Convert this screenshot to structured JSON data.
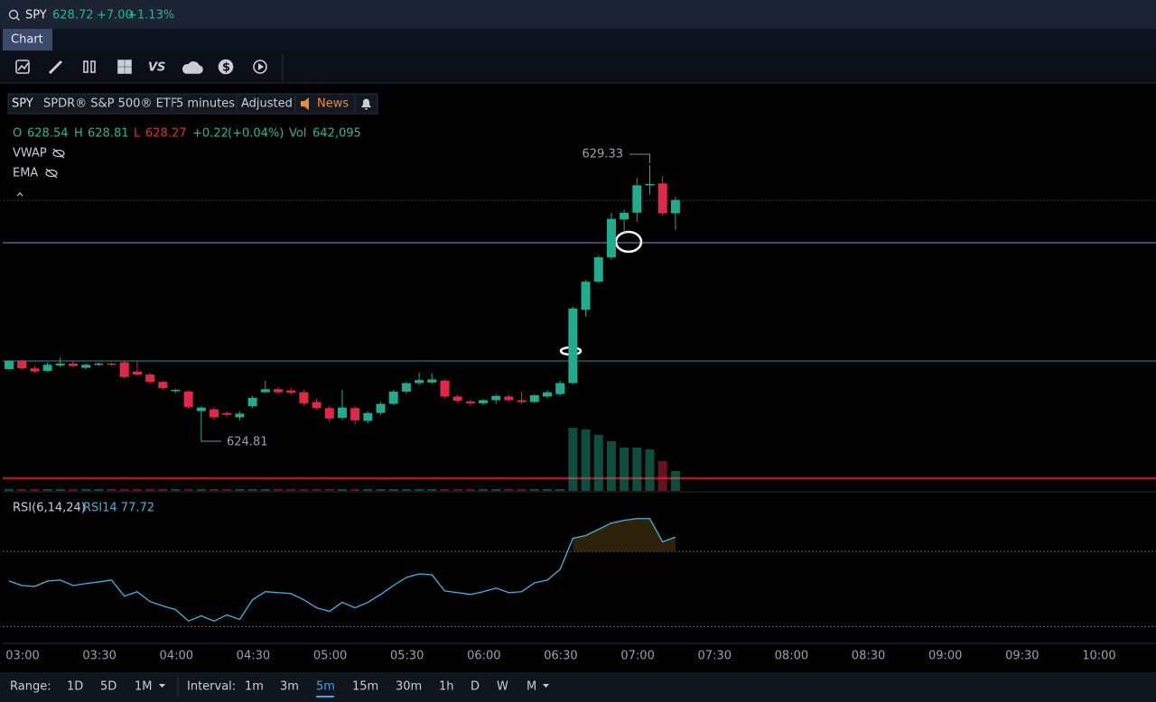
{
  "search": {
    "symbol": "SPY",
    "price": "628.72",
    "change": "+7.00",
    "change_pct": "+1.13%"
  },
  "tabs": [
    "Chart"
  ],
  "header": {
    "symbol": "SPY",
    "name": "SPDR® S&P 500® ETF",
    "interval": "5 minutes",
    "adjustment": "Adjusted",
    "news": "News"
  },
  "ohlc": {
    "o_label": "O",
    "open": "628.54",
    "h_label": "H",
    "high": "628.81",
    "l_label": "L",
    "low": "628.27",
    "change": "+0.22",
    "change_pct": "(+0.04%)",
    "vol_label": "Vol",
    "volume": "642,095"
  },
  "studies": [
    "VWAP",
    "EMA"
  ],
  "chart_data": {
    "type": "candlestick",
    "x": [
      "02:55",
      "03:00",
      "03:05",
      "03:10",
      "03:15",
      "03:20",
      "03:25",
      "03:30",
      "03:35",
      "03:40",
      "03:45",
      "03:50",
      "03:55",
      "04:00",
      "04:05",
      "04:10",
      "04:15",
      "04:20",
      "04:25",
      "04:30",
      "04:35",
      "04:40",
      "04:45",
      "04:50",
      "04:55",
      "05:00",
      "05:05",
      "05:10",
      "05:15",
      "05:20",
      "05:25",
      "05:30",
      "05:35",
      "05:40",
      "05:45",
      "05:50",
      "05:55",
      "06:00",
      "06:05",
      "06:10",
      "06:15",
      "06:20",
      "06:25",
      "06:30",
      "06:35",
      "06:40",
      "06:45",
      "06:50",
      "06:55",
      "07:00",
      "07:05",
      "07:10",
      "07:15"
    ],
    "open": [
      625.99,
      626.12,
      626.0,
      625.96,
      626.05,
      626.08,
      626.01,
      626.06,
      626.08,
      626.1,
      625.95,
      625.9,
      625.78,
      625.63,
      625.62,
      625.3,
      625.33,
      625.27,
      625.2,
      625.38,
      625.61,
      625.66,
      625.64,
      625.61,
      625.45,
      625.35,
      625.19,
      625.35,
      625.14,
      625.27,
      625.42,
      625.62,
      625.76,
      625.77,
      625.8,
      625.54,
      625.46,
      625.43,
      625.48,
      625.54,
      625.48,
      625.45,
      625.54,
      625.58,
      625.76,
      626.96,
      627.42,
      627.82,
      628.44,
      628.55,
      629.0,
      629.03,
      628.54
    ],
    "high": [
      626.14,
      626.14,
      626.04,
      626.1,
      626.18,
      626.12,
      626.08,
      626.1,
      626.1,
      626.12,
      626.12,
      625.93,
      625.8,
      625.66,
      625.64,
      625.38,
      625.36,
      625.3,
      625.3,
      625.55,
      625.8,
      625.7,
      625.68,
      625.65,
      625.5,
      625.38,
      625.65,
      625.38,
      625.3,
      625.45,
      625.65,
      625.78,
      625.93,
      625.92,
      625.82,
      625.57,
      625.49,
      625.5,
      625.58,
      625.57,
      625.62,
      625.58,
      625.64,
      625.8,
      627.01,
      627.45,
      627.85,
      628.55,
      628.6,
      629.12,
      629.33,
      629.15,
      628.81
    ],
    "low": [
      625.97,
      625.98,
      625.93,
      625.94,
      626.02,
      626.02,
      625.99,
      626.04,
      626.05,
      625.83,
      625.88,
      625.75,
      625.65,
      625.6,
      625.34,
      624.81,
      625.16,
      625.21,
      625.15,
      625.35,
      625.6,
      625.58,
      625.57,
      625.39,
      625.32,
      625.13,
      625.15,
      625.08,
      625.1,
      625.24,
      625.4,
      625.58,
      625.73,
      625.75,
      625.51,
      625.44,
      625.39,
      625.4,
      625.42,
      625.45,
      625.42,
      625.43,
      625.51,
      625.55,
      625.74,
      626.85,
      627.4,
      627.78,
      628.22,
      628.4,
      628.85,
      628.5,
      628.27
    ],
    "close": [
      626.12,
      626.0,
      625.95,
      626.06,
      626.08,
      626.04,
      626.06,
      626.08,
      626.06,
      625.86,
      625.9,
      625.78,
      625.68,
      625.65,
      625.37,
      625.36,
      625.2,
      625.24,
      625.26,
      625.52,
      625.66,
      625.61,
      625.6,
      625.43,
      625.35,
      625.18,
      625.36,
      625.15,
      625.27,
      625.42,
      625.62,
      625.76,
      625.81,
      625.82,
      625.54,
      625.47,
      625.43,
      625.48,
      625.55,
      625.48,
      625.45,
      625.56,
      625.61,
      625.76,
      626.98,
      627.42,
      627.82,
      628.45,
      628.55,
      629.0,
      629.02,
      628.54,
      628.76
    ],
    "volume": [
      2,
      2,
      2,
      2,
      2,
      2,
      2,
      2,
      2,
      2,
      2,
      2,
      2,
      2,
      2,
      2,
      2,
      2,
      2,
      2,
      2,
      2,
      2,
      2,
      2,
      2,
      2,
      2,
      2,
      2,
      2,
      2,
      2,
      2,
      2,
      2,
      2,
      2,
      2,
      2,
      2,
      2,
      2,
      2,
      70,
      68,
      62,
      55,
      48,
      48,
      46,
      33,
      22
    ],
    "ylim": [
      623.98,
      630.63
    ],
    "vlim": [
      0,
      100
    ],
    "up_color": "#22ab8c",
    "down_color": "#e0294a",
    "annotations": [
      "629.33",
      "624.81"
    ],
    "xticks": [
      "03:00",
      "03:30",
      "04:00",
      "04:30",
      "05:00",
      "05:30",
      "06:00",
      "06:30",
      "07:00",
      "07:30",
      "08:00",
      "08:30",
      "09:00",
      "09:30",
      "10:00"
    ],
    "rsi": {
      "title": "RSI(6,14,24)",
      "label": "RSI14 77.72",
      "color": "#3fb4e0",
      "values": [
        54.3,
        51.9,
        51.4,
        54.3,
        54.8,
        51.9,
        52.9,
        53.8,
        54.8,
        46.2,
        48.6,
        43.3,
        41,
        39,
        32.9,
        35.7,
        32.9,
        36.2,
        33.8,
        44.3,
        48.6,
        48.1,
        47.6,
        44.3,
        40,
        38.1,
        42.9,
        40,
        42.9,
        47.1,
        51.9,
        56.2,
        58.1,
        57.6,
        49,
        48.1,
        47.1,
        48.6,
        50.5,
        48.1,
        48.6,
        53.3,
        54.8,
        60.5,
        77.1,
        78.6,
        81.9,
        85.2,
        86.7,
        87.6,
        87.6,
        75.2,
        77.72
      ],
      "ylim": [
        21,
        100.5
      ],
      "levels": [
        70,
        30
      ]
    }
  },
  "range": {
    "label": "Range:",
    "options": [
      "1D",
      "5D",
      "1M"
    ]
  },
  "interval": {
    "label": "Interval:",
    "options": [
      "1m",
      "3m",
      "5m",
      "15m",
      "30m",
      "1h",
      "D",
      "W",
      "M"
    ],
    "selected": 2
  }
}
